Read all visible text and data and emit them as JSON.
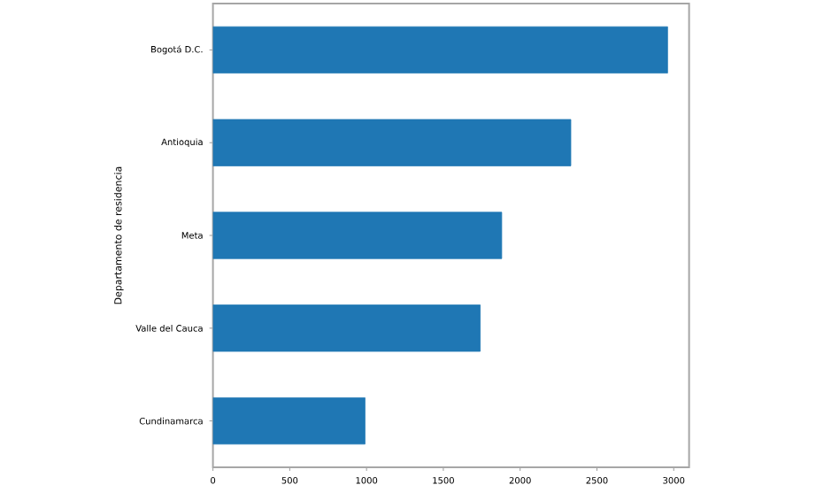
{
  "chart_data": {
    "type": "bar",
    "orientation": "horizontal",
    "ylabel": "Departamento de residencia",
    "categories": [
      "Bogotá D.C.",
      "Antioquia",
      "Meta",
      "Valle del Cauca",
      "Cundinamarca"
    ],
    "values": [
      2960,
      2330,
      1880,
      1740,
      990
    ],
    "color": "#1f77b4",
    "xlim": [
      0,
      3100
    ],
    "xticks": [
      0,
      500,
      1000,
      1500,
      2000,
      2500,
      3000
    ]
  }
}
